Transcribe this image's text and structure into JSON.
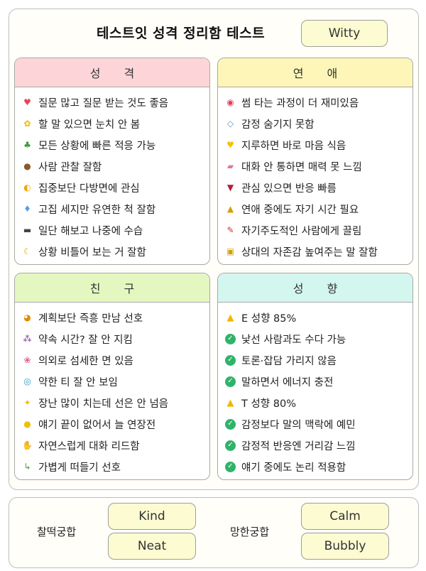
{
  "header": {
    "title": "테스트잇 성격 정리함 테스트",
    "type_label": "Witty"
  },
  "cards": {
    "personality": {
      "title": "성 격",
      "color": "#fdd5d8",
      "items": [
        {
          "icon": "heart-icon",
          "text": "질문 많고 질문 받는 것도 좋음"
        },
        {
          "icon": "chick-icon",
          "text": "할 말 있으면 눈치 안 봄"
        },
        {
          "icon": "clover-icon",
          "text": "모든 상황에 빠른 적응 가능"
        },
        {
          "icon": "chestnut-icon",
          "text": "사람 관찰 잘함"
        },
        {
          "icon": "crescent-icon",
          "text": "집중보단 다방면에 관심"
        },
        {
          "icon": "balloon-icon",
          "text": "고집 세지만 유연한 척 잘함"
        },
        {
          "icon": "traffic-light-icon",
          "text": "일단 해보고 나중에 수습"
        },
        {
          "icon": "moon-icon",
          "text": "상황 비틀어 보는 거 잘함"
        }
      ]
    },
    "romance": {
      "title": "연 애",
      "color": "#fdf6b8",
      "items": [
        {
          "icon": "ring-circle-icon",
          "text": "썸 타는 과정이 더 재미있음"
        },
        {
          "icon": "diamond-ring-icon",
          "text": "감정 숨기지 못함"
        },
        {
          "icon": "yellow-heart-icon",
          "text": "지루하면 바로 마음 식음"
        },
        {
          "icon": "pill-icon",
          "text": "대화 안 통하면 매력 못 느낌"
        },
        {
          "icon": "wine-glass-icon",
          "text": "관심 있으면 반응 빠름"
        },
        {
          "icon": "medal-icon",
          "text": "연애 중에도 자기 시간 필요"
        },
        {
          "icon": "pushpin-icon",
          "text": "자기주도적인 사람에게 끌림"
        },
        {
          "icon": "lock-icon",
          "text": "상대의 자존감 높여주는 말 잘함"
        }
      ]
    },
    "friends": {
      "title": "친 구",
      "color": "#e5f7c0",
      "items": [
        {
          "icon": "tiger-icon",
          "text": "계획보단 즉흥 만남 선호"
        },
        {
          "icon": "grapes-icon",
          "text": "약속 시간? 잘 안 지킴"
        },
        {
          "icon": "flower-icon",
          "text": "의외로 섬세한 면 있음"
        },
        {
          "icon": "spiral-icon",
          "text": "약한 티 잘 안 보임"
        },
        {
          "icon": "sparkles-icon",
          "text": "장난 많이 치는데 선은 안 넘음"
        },
        {
          "icon": "lightbulb-icon",
          "text": "얘기 끝이 없어서 늘 연장전"
        },
        {
          "icon": "handshake-icon",
          "text": "자연스럽게 대화 리드함"
        },
        {
          "icon": "scooter-icon",
          "text": "가볍게 떠들기 선호"
        }
      ]
    },
    "tendency": {
      "title": "성 향",
      "color": "#d3f6ee",
      "items": [
        {
          "icon": "warning-icon",
          "text": "E 성향 85%"
        },
        {
          "icon": "check-circle-icon",
          "text": "낯선 사람과도 수다 가능"
        },
        {
          "icon": "check-circle-icon",
          "text": "토론·잡담 가리지 않음"
        },
        {
          "icon": "check-circle-icon",
          "text": "말하면서 에너지 충전"
        },
        {
          "icon": "warning-icon",
          "text": "T 성향 80%"
        },
        {
          "icon": "check-circle-icon",
          "text": "감정보다 말의 맥락에 예민"
        },
        {
          "icon": "check-circle-icon",
          "text": "감정적 반응엔 거리감 느낌"
        },
        {
          "icon": "check-circle-icon",
          "text": "얘기 중에도 논리 적용함"
        }
      ]
    }
  },
  "compat": {
    "good_label": "찰떡궁합",
    "good": [
      "Kind",
      "Neat"
    ],
    "bad_label": "망한궁합",
    "bad": [
      "Calm",
      "Bubbly"
    ]
  }
}
